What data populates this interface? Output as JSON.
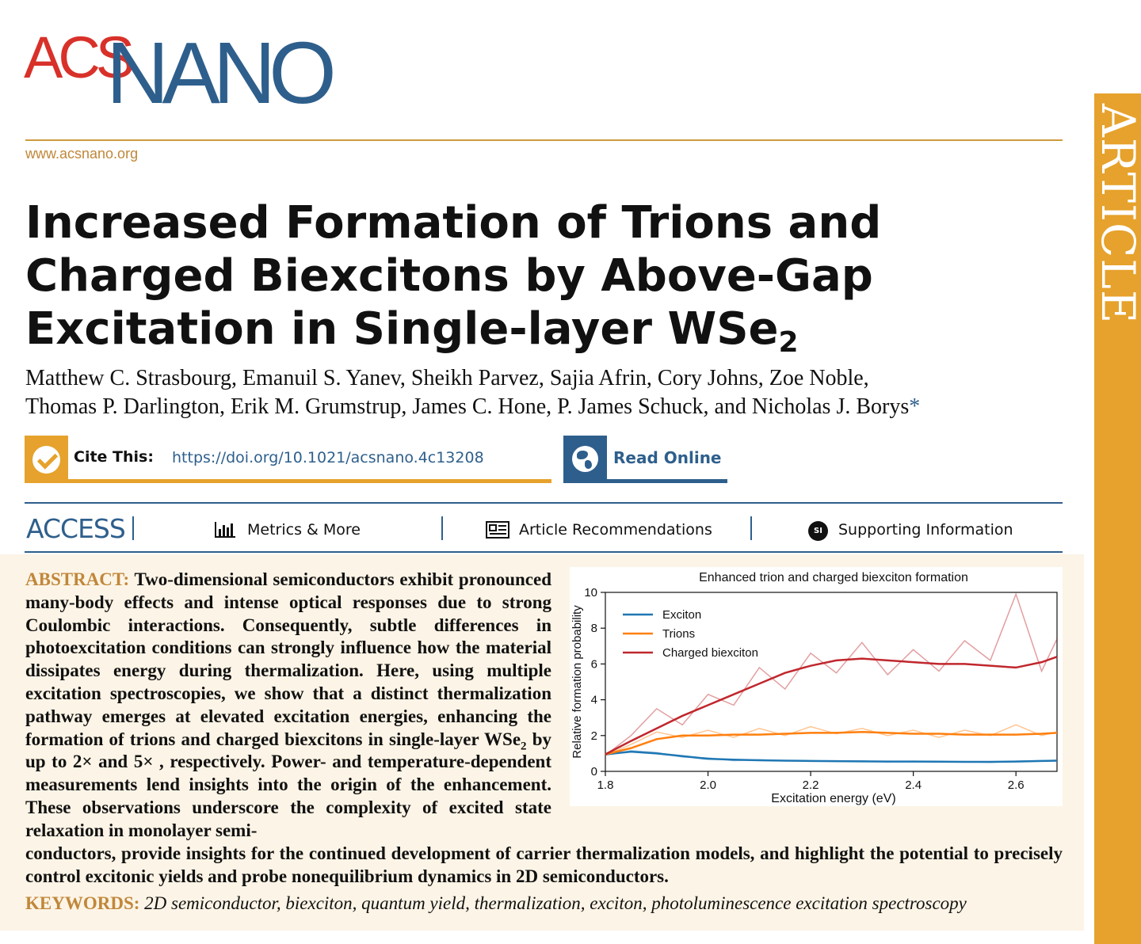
{
  "brand": {
    "acs": "ACS",
    "nano": "NANO",
    "colors": {
      "acs_red": "#d8312a",
      "nano_blue": "#2e5f8c",
      "gold": "#e6a22c"
    }
  },
  "site_url": "www.acsnano.org",
  "side_tab": "ARTICLE",
  "title_main": "Increased Formation of Trions and Charged Biexcitons by Above-Gap Excitation in Single-layer WSe",
  "title_sub": "2",
  "authors_line1": "Matthew C. Strasbourg, Emanuil S. Yanev, Sheikh Parvez, Sajia Afrin, Cory Johns, Zoe Noble,",
  "authors_line2": "Thomas P. Darlington, Erik M. Grumstrup, James C. Hone, P. James Schuck, and Nicholas J. Borys",
  "authors_star": "*",
  "cite": {
    "label": "Cite This:",
    "link": "https://doi.org/10.1021/acsnano.4c13208",
    "icon": "check-circle-icon"
  },
  "read_online": {
    "label": "Read Online",
    "icon": "globe-icon"
  },
  "access": {
    "label": "ACCESS",
    "metrics": "Metrics & More",
    "recommendations": "Article Recommendations",
    "supporting": "Supporting Information",
    "si_badge": "SI"
  },
  "abstract": {
    "label": "ABSTRACT:",
    "text_a": "Two-dimensional semiconductors exhibit pronounced many-body effects and intense optical responses due to strong Coulombic interactions. Consequently, subtle differences in photoexcitation conditions can strongly influence how the material dissipates energy during thermalization. Here, using multiple excitation spectroscopies, we show that a distinct thermalization pathway emerges at elevated excitation energies, enhancing the formation of trions and charged biexcitons in single-layer WSe",
    "text_sub": "2",
    "text_b": " by up to 2× and 5× , respectively. Power- and temperature-dependent measurements lend insights into the origin of the enhancement. These observations underscore the complexity of excited state relaxation in monolayer semi-",
    "text_c": "conductors, provide insights for the continued development of carrier thermalization models, and highlight the potential to precisely control excitonic yields and probe nonequilibrium dynamics in 2D semiconductors."
  },
  "keywords": {
    "label": "KEYWORDS:",
    "text": "2D semiconductor, biexciton, quantum yield, thermalization, exciton, photoluminescence excitation spectroscopy"
  },
  "chart_data": {
    "type": "line",
    "title": "Enhanced trion and charged biexciton formation",
    "xlabel": "Excitation energy (eV)",
    "ylabel": "Relative formation probability",
    "xlim": [
      1.8,
      2.68
    ],
    "ylim": [
      0,
      10
    ],
    "xticks": [
      "1.8",
      "2.0",
      "2.2",
      "2.4",
      "2.6"
    ],
    "xtick_values": [
      1.8,
      2.0,
      2.2,
      2.4,
      2.6
    ],
    "yticks": [
      "0",
      "2",
      "4",
      "6",
      "8",
      "10"
    ],
    "ytick_values": [
      0,
      2,
      4,
      6,
      8,
      10
    ],
    "legend_position": "top-left",
    "grid": false,
    "x": [
      1.8,
      1.85,
      1.9,
      1.95,
      2.0,
      2.05,
      2.1,
      2.15,
      2.2,
      2.25,
      2.3,
      2.35,
      2.4,
      2.45,
      2.5,
      2.55,
      2.6,
      2.65,
      2.68
    ],
    "series": [
      {
        "name": "Exciton",
        "color": "#1f77b4",
        "values": [
          0.95,
          1.1,
          1.0,
          0.85,
          0.7,
          0.65,
          0.62,
          0.6,
          0.58,
          0.57,
          0.56,
          0.55,
          0.55,
          0.54,
          0.53,
          0.53,
          0.55,
          0.58,
          0.6
        ],
        "raw": [
          0.9,
          1.15,
          1.05,
          0.8,
          0.75,
          0.6,
          0.65,
          0.58,
          0.6,
          0.55,
          0.58,
          0.53,
          0.57,
          0.52,
          0.55,
          0.5,
          0.57,
          0.6,
          0.62
        ]
      },
      {
        "name": "Trions",
        "color": "#ff7f0e",
        "values": [
          0.95,
          1.3,
          1.8,
          2.0,
          2.0,
          2.05,
          2.05,
          2.1,
          2.15,
          2.15,
          2.2,
          2.15,
          2.1,
          2.1,
          2.05,
          2.05,
          2.05,
          2.1,
          2.15
        ],
        "raw": [
          0.9,
          1.5,
          2.2,
          1.9,
          2.3,
          1.9,
          2.4,
          2.0,
          2.5,
          2.1,
          2.4,
          2.0,
          2.3,
          1.9,
          2.3,
          2.0,
          2.6,
          2.0,
          2.2
        ]
      },
      {
        "name": "Charged biexciton",
        "color": "#c0272d",
        "values": [
          0.95,
          1.7,
          2.4,
          3.1,
          3.7,
          4.3,
          4.9,
          5.5,
          5.9,
          6.2,
          6.3,
          6.2,
          6.1,
          6.0,
          6.0,
          5.9,
          5.8,
          6.1,
          6.4
        ],
        "raw": [
          0.9,
          2.0,
          3.5,
          2.6,
          4.3,
          3.7,
          5.8,
          4.6,
          6.6,
          5.5,
          7.2,
          5.4,
          6.8,
          5.6,
          7.3,
          6.2,
          9.9,
          5.6,
          7.4
        ]
      }
    ]
  }
}
